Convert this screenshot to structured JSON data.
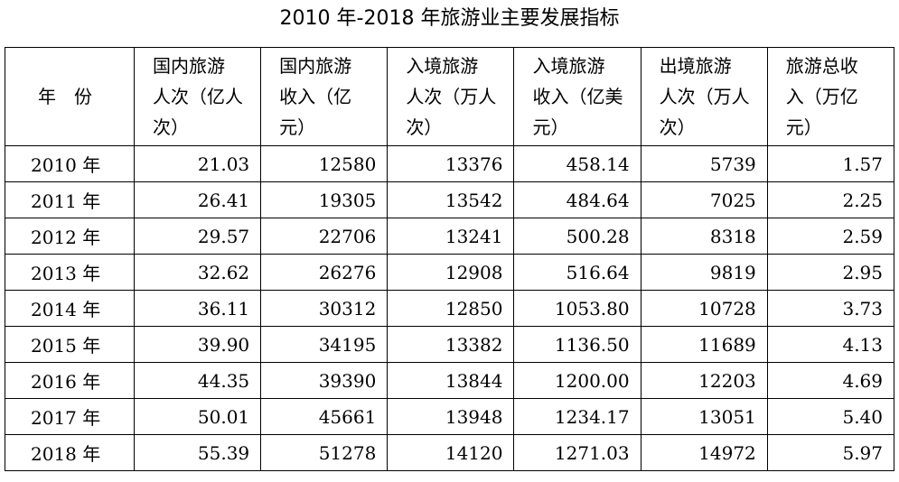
{
  "title": "2010 年-2018 年旅游业主要发展指标",
  "table": {
    "header": [
      [
        "年　份"
      ],
      [
        "国内旅游",
        "人次（亿人",
        "次）"
      ],
      [
        "国内旅游",
        "收入（亿",
        "元）"
      ],
      [
        "入境旅游",
        "人次（万人",
        "次）"
      ],
      [
        "入境旅游",
        "收入（亿美",
        "元）"
      ],
      [
        "出境旅游",
        "人次（万人",
        "次）"
      ],
      [
        "旅游总收",
        "入（万亿",
        "元）"
      ]
    ],
    "rows": [
      [
        "2010 年",
        "21.03",
        "12580",
        "13376",
        "458.14",
        "5739",
        "1.57"
      ],
      [
        "2011 年",
        "26.41",
        "19305",
        "13542",
        "484.64",
        "7025",
        "2.25"
      ],
      [
        "2012 年",
        "29.57",
        "22706",
        "13241",
        "500.28",
        "8318",
        "2.59"
      ],
      [
        "2013 年",
        "32.62",
        "26276",
        "12908",
        "516.64",
        "9819",
        "2.95"
      ],
      [
        "2014 年",
        "36.11",
        "30312",
        "12850",
        "1053.80",
        "10728",
        "3.73"
      ],
      [
        "2015 年",
        "39.90",
        "34195",
        "13382",
        "1136.50",
        "11689",
        "4.13"
      ],
      [
        "2016 年",
        "44.35",
        "39390",
        "13844",
        "1200.00",
        "12203",
        "4.69"
      ],
      [
        "2017 年",
        "50.01",
        "45661",
        "13948",
        "1234.17",
        "13051",
        "5.40"
      ],
      [
        "2018 年",
        "55.39",
        "51278",
        "14120",
        "1271.03",
        "14972",
        "5.97"
      ]
    ]
  }
}
